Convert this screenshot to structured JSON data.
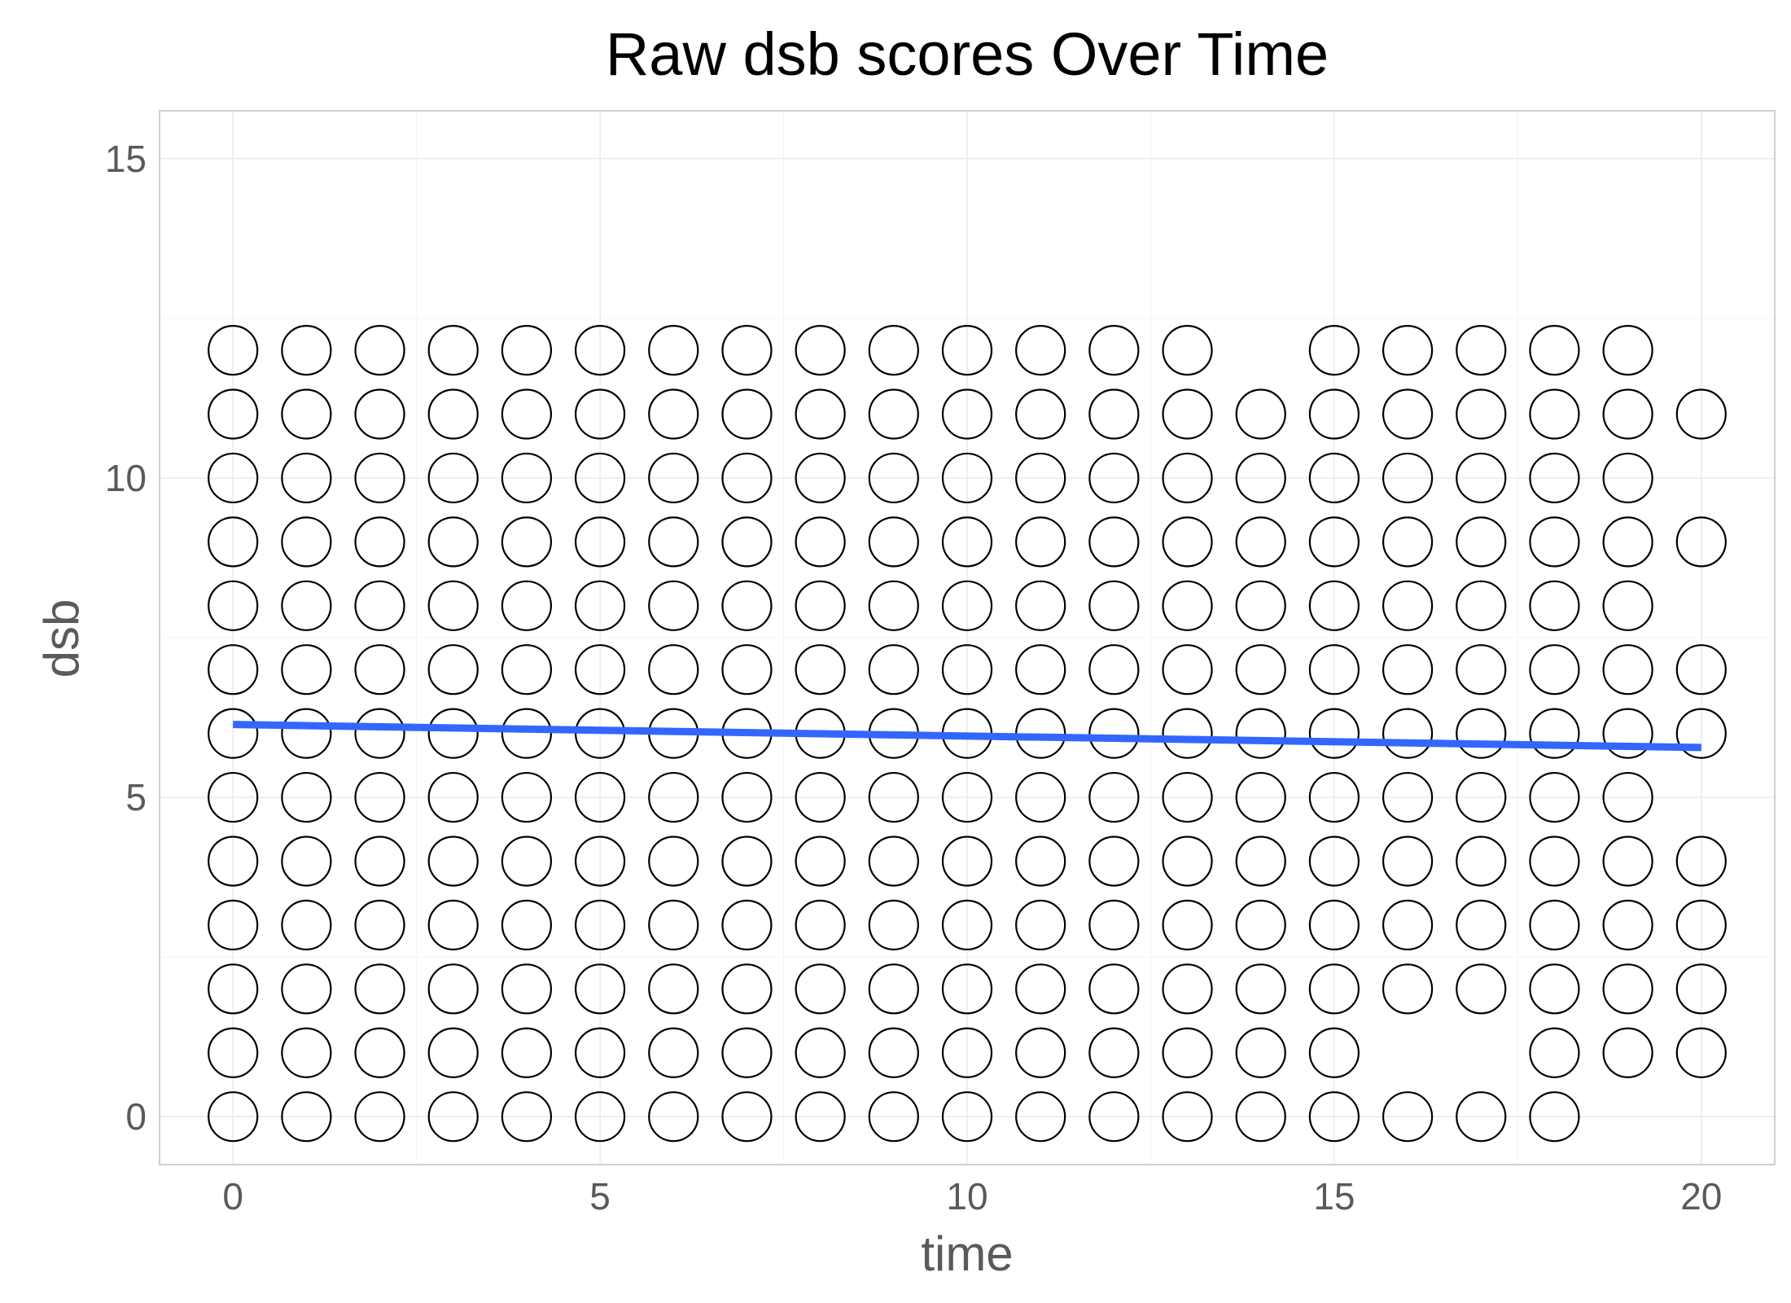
{
  "chart_data": {
    "type": "scatter",
    "title": "Raw dsb scores Over Time",
    "xlabel": "time",
    "ylabel": "dsb",
    "xlim": [
      -1,
      21
    ],
    "ylim": [
      -0.75,
      15.75
    ],
    "x_ticks": [
      0,
      5,
      10,
      15,
      20
    ],
    "y_ticks": [
      0,
      5,
      10,
      15
    ],
    "grid": true,
    "point_style": "open-circle",
    "points_by_time": [
      {
        "time": 0,
        "dsb": [
          0,
          1,
          2,
          3,
          4,
          5,
          6,
          7,
          8,
          9,
          10,
          11,
          12
        ]
      },
      {
        "time": 1,
        "dsb": [
          0,
          1,
          2,
          3,
          4,
          5,
          6,
          7,
          8,
          9,
          10,
          11,
          12
        ]
      },
      {
        "time": 2,
        "dsb": [
          0,
          1,
          2,
          3,
          4,
          5,
          6,
          7,
          8,
          9,
          10,
          11,
          12
        ]
      },
      {
        "time": 3,
        "dsb": [
          0,
          1,
          2,
          3,
          4,
          5,
          6,
          7,
          8,
          9,
          10,
          11,
          12
        ]
      },
      {
        "time": 4,
        "dsb": [
          0,
          1,
          2,
          3,
          4,
          5,
          6,
          7,
          8,
          9,
          10,
          11,
          12
        ]
      },
      {
        "time": 5,
        "dsb": [
          0,
          1,
          2,
          3,
          4,
          5,
          6,
          7,
          8,
          9,
          10,
          11,
          12
        ]
      },
      {
        "time": 6,
        "dsb": [
          0,
          1,
          2,
          3,
          4,
          5,
          6,
          7,
          8,
          9,
          10,
          11,
          12
        ]
      },
      {
        "time": 7,
        "dsb": [
          0,
          1,
          2,
          3,
          4,
          5,
          6,
          7,
          8,
          9,
          10,
          11,
          12
        ]
      },
      {
        "time": 8,
        "dsb": [
          0,
          1,
          2,
          3,
          4,
          5,
          6,
          7,
          8,
          9,
          10,
          11,
          12
        ]
      },
      {
        "time": 9,
        "dsb": [
          0,
          1,
          2,
          3,
          4,
          5,
          6,
          7,
          8,
          9,
          10,
          11,
          12
        ]
      },
      {
        "time": 10,
        "dsb": [
          0,
          1,
          2,
          3,
          4,
          5,
          6,
          7,
          8,
          9,
          10,
          11,
          12
        ]
      },
      {
        "time": 11,
        "dsb": [
          0,
          1,
          2,
          3,
          4,
          5,
          6,
          7,
          8,
          9,
          10,
          11,
          12
        ]
      },
      {
        "time": 12,
        "dsb": [
          0,
          1,
          2,
          3,
          4,
          5,
          6,
          7,
          8,
          9,
          10,
          11,
          12
        ]
      },
      {
        "time": 13,
        "dsb": [
          0,
          1,
          2,
          3,
          4,
          5,
          6,
          7,
          8,
          9,
          10,
          11,
          12
        ]
      },
      {
        "time": 14,
        "dsb": [
          0,
          1,
          2,
          3,
          4,
          5,
          6,
          7,
          8,
          9,
          10,
          11
        ]
      },
      {
        "time": 15,
        "dsb": [
          0,
          1,
          2,
          3,
          4,
          5,
          6,
          7,
          8,
          9,
          10,
          11,
          12
        ]
      },
      {
        "time": 16,
        "dsb": [
          0,
          2,
          3,
          4,
          5,
          6,
          7,
          8,
          9,
          10,
          11,
          12
        ]
      },
      {
        "time": 17,
        "dsb": [
          0,
          2,
          3,
          4,
          5,
          6,
          7,
          8,
          9,
          10,
          11,
          12
        ]
      },
      {
        "time": 18,
        "dsb": [
          0,
          1,
          2,
          3,
          4,
          5,
          6,
          7,
          8,
          9,
          10,
          11,
          12
        ]
      },
      {
        "time": 19,
        "dsb": [
          1,
          2,
          3,
          4,
          5,
          6,
          7,
          8,
          9,
          10,
          11,
          12
        ]
      },
      {
        "time": 20,
        "dsb": [
          1,
          2,
          3,
          4,
          6,
          7,
          9,
          11
        ]
      }
    ],
    "trend_line": {
      "method": "linear",
      "x": [
        0,
        20
      ],
      "y": [
        6.14,
        5.78
      ],
      "color": "#3366ff"
    }
  }
}
